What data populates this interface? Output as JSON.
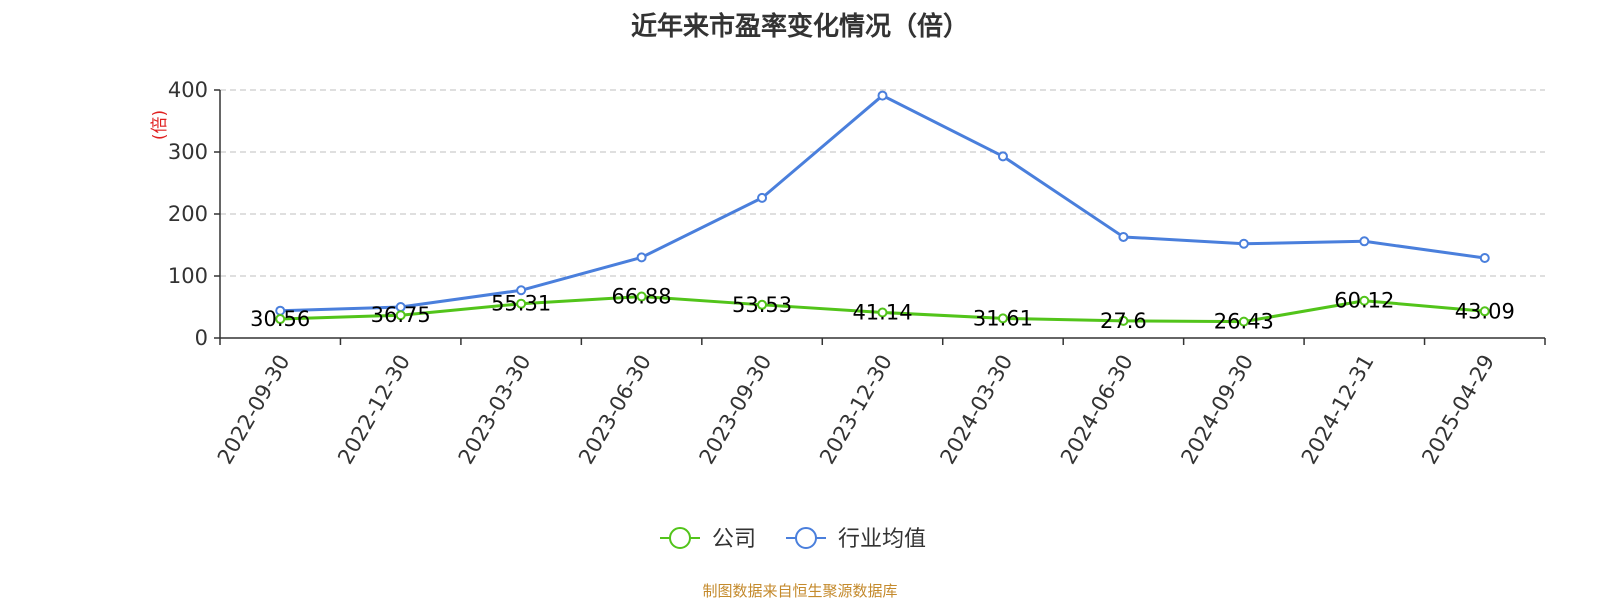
{
  "chart_data": {
    "type": "line",
    "title": "近年来市盈率变化情况（倍）",
    "ylabel": "(倍)",
    "xlabel": "",
    "ylim": [
      0,
      400
    ],
    "yticks": [
      0,
      100,
      200,
      300,
      400
    ],
    "categories": [
      "2022-09-30",
      "2022-12-30",
      "2023-03-30",
      "2023-06-30",
      "2023-09-30",
      "2023-12-30",
      "2024-03-30",
      "2024-06-30",
      "2024-09-30",
      "2024-12-31",
      "2025-04-29"
    ],
    "series": [
      {
        "name": "公司",
        "color": "#52c41a",
        "labels": true,
        "values": [
          30.56,
          36.75,
          55.31,
          66.88,
          53.53,
          41.14,
          31.61,
          27.6,
          26.43,
          60.12,
          43.09
        ]
      },
      {
        "name": "行业均值",
        "color": "#4a7fdc",
        "labels": false,
        "values": [
          44,
          50,
          77,
          130,
          226,
          391,
          293,
          163,
          152,
          156,
          129
        ]
      }
    ],
    "grid": "horizontal-dashed",
    "legend_position": "bottom-center"
  },
  "footer": {
    "source": "制图数据来自恒生聚源数据库"
  }
}
